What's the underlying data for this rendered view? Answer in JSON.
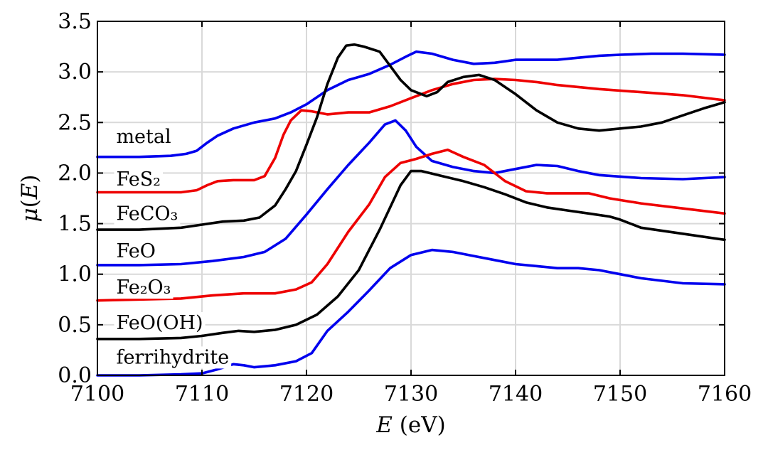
{
  "chart_data": {
    "type": "line",
    "xlabel": "E (eV)",
    "ylabel": "μ(E)",
    "xlim": [
      7100,
      7160
    ],
    "ylim": [
      0.0,
      3.5
    ],
    "xticks": [
      7100,
      7110,
      7120,
      7130,
      7140,
      7150,
      7160
    ],
    "yticks": [
      0.0,
      0.5,
      1.0,
      1.5,
      2.0,
      2.5,
      3.0,
      3.5
    ],
    "xtick_labels": [
      "7100",
      "7110",
      "7120",
      "7130",
      "7140",
      "7150",
      "7160"
    ],
    "ytick_labels": [
      "0.0",
      "0.5",
      "1.0",
      "1.5",
      "2.0",
      "2.5",
      "3.0",
      "3.5"
    ],
    "grid": true,
    "legend": "none",
    "labels": [
      {
        "text": "metal",
        "x": 7101.8,
        "y": 2.36
      },
      {
        "text": "FeS₂",
        "x": 7101.8,
        "y": 1.94
      },
      {
        "text": "FeCO₃",
        "x": 7101.8,
        "y": 1.6
      },
      {
        "text": "FeO",
        "x": 7101.8,
        "y": 1.23
      },
      {
        "text": "Fe₂O₃",
        "x": 7101.8,
        "y": 0.87
      },
      {
        "text": "FeO(OH)",
        "x": 7101.8,
        "y": 0.52
      },
      {
        "text": "ferrihydrite",
        "x": 7101.8,
        "y": 0.18
      }
    ],
    "series": [
      {
        "color": "#0000ee",
        "points": [
          [
            7100,
            2.16
          ],
          [
            7104,
            2.16
          ],
          [
            7107,
            2.17
          ],
          [
            7108.5,
            2.19
          ],
          [
            7109.5,
            2.22
          ],
          [
            7110.5,
            2.3
          ],
          [
            7111.5,
            2.37
          ],
          [
            7113,
            2.44
          ],
          [
            7115,
            2.5
          ],
          [
            7117,
            2.54
          ],
          [
            7118.5,
            2.6
          ],
          [
            7120,
            2.68
          ],
          [
            7122,
            2.82
          ],
          [
            7124,
            2.92
          ],
          [
            7126,
            2.98
          ],
          [
            7128,
            3.07
          ],
          [
            7129.5,
            3.15
          ],
          [
            7130.5,
            3.2
          ],
          [
            7132,
            3.18
          ],
          [
            7134,
            3.12
          ],
          [
            7136,
            3.08
          ],
          [
            7138,
            3.09
          ],
          [
            7140,
            3.12
          ],
          [
            7142,
            3.12
          ],
          [
            7144,
            3.12
          ],
          [
            7146,
            3.14
          ],
          [
            7148,
            3.16
          ],
          [
            7150,
            3.17
          ],
          [
            7153,
            3.18
          ],
          [
            7156,
            3.18
          ],
          [
            7160,
            3.17
          ]
        ]
      },
      {
        "color": "#ee0000",
        "points": [
          [
            7100,
            1.81
          ],
          [
            7104,
            1.81
          ],
          [
            7108,
            1.81
          ],
          [
            7109.5,
            1.83
          ],
          [
            7110.5,
            1.88
          ],
          [
            7111.5,
            1.92
          ],
          [
            7113,
            1.93
          ],
          [
            7115,
            1.93
          ],
          [
            7116,
            1.97
          ],
          [
            7117,
            2.15
          ],
          [
            7117.8,
            2.38
          ],
          [
            7118.5,
            2.52
          ],
          [
            7119.5,
            2.62
          ],
          [
            7120.5,
            2.61
          ],
          [
            7122,
            2.58
          ],
          [
            7124,
            2.6
          ],
          [
            7126,
            2.6
          ],
          [
            7128,
            2.66
          ],
          [
            7130,
            2.74
          ],
          [
            7132,
            2.82
          ],
          [
            7134,
            2.88
          ],
          [
            7136,
            2.92
          ],
          [
            7138,
            2.93
          ],
          [
            7140,
            2.92
          ],
          [
            7142,
            2.9
          ],
          [
            7144,
            2.87
          ],
          [
            7148,
            2.83
          ],
          [
            7152,
            2.8
          ],
          [
            7156,
            2.77
          ],
          [
            7160,
            2.72
          ]
        ]
      },
      {
        "color": "#000000",
        "points": [
          [
            7100,
            1.44
          ],
          [
            7104,
            1.44
          ],
          [
            7108,
            1.46
          ],
          [
            7110,
            1.49
          ],
          [
            7112,
            1.52
          ],
          [
            7114,
            1.53
          ],
          [
            7115.5,
            1.56
          ],
          [
            7117,
            1.68
          ],
          [
            7118,
            1.84
          ],
          [
            7119,
            2.02
          ],
          [
            7120,
            2.28
          ],
          [
            7121,
            2.55
          ],
          [
            7122,
            2.88
          ],
          [
            7123,
            3.14
          ],
          [
            7123.8,
            3.26
          ],
          [
            7124.6,
            3.27
          ],
          [
            7125.5,
            3.25
          ],
          [
            7127,
            3.2
          ],
          [
            7128,
            3.06
          ],
          [
            7129,
            2.92
          ],
          [
            7130,
            2.82
          ],
          [
            7131.5,
            2.76
          ],
          [
            7132.5,
            2.8
          ],
          [
            7133.5,
            2.9
          ],
          [
            7135,
            2.95
          ],
          [
            7136.5,
            2.97
          ],
          [
            7138,
            2.92
          ],
          [
            7140,
            2.78
          ],
          [
            7142,
            2.62
          ],
          [
            7144,
            2.5
          ],
          [
            7146,
            2.44
          ],
          [
            7148,
            2.42
          ],
          [
            7150,
            2.44
          ],
          [
            7152,
            2.46
          ],
          [
            7154,
            2.5
          ],
          [
            7156,
            2.57
          ],
          [
            7158,
            2.64
          ],
          [
            7160,
            2.7
          ]
        ]
      },
      {
        "color": "#0000ee",
        "points": [
          [
            7100,
            1.09
          ],
          [
            7104,
            1.09
          ],
          [
            7108,
            1.1
          ],
          [
            7111,
            1.13
          ],
          [
            7114,
            1.17
          ],
          [
            7116,
            1.22
          ],
          [
            7118,
            1.35
          ],
          [
            7120,
            1.59
          ],
          [
            7122,
            1.84
          ],
          [
            7124,
            2.08
          ],
          [
            7126,
            2.3
          ],
          [
            7127.5,
            2.48
          ],
          [
            7128.5,
            2.52
          ],
          [
            7129.5,
            2.42
          ],
          [
            7130.5,
            2.26
          ],
          [
            7132,
            2.12
          ],
          [
            7134,
            2.06
          ],
          [
            7136,
            2.02
          ],
          [
            7138,
            2.0
          ],
          [
            7140,
            2.04
          ],
          [
            7142,
            2.08
          ],
          [
            7144,
            2.07
          ],
          [
            7146,
            2.02
          ],
          [
            7148,
            1.98
          ],
          [
            7152,
            1.95
          ],
          [
            7156,
            1.94
          ],
          [
            7160,
            1.96
          ]
        ]
      },
      {
        "color": "#ee0000",
        "points": [
          [
            7100,
            0.74
          ],
          [
            7104,
            0.75
          ],
          [
            7108,
            0.76
          ],
          [
            7111,
            0.79
          ],
          [
            7114,
            0.81
          ],
          [
            7117,
            0.81
          ],
          [
            7119,
            0.85
          ],
          [
            7120.5,
            0.92
          ],
          [
            7122,
            1.1
          ],
          [
            7124,
            1.42
          ],
          [
            7126,
            1.69
          ],
          [
            7127.5,
            1.96
          ],
          [
            7129,
            2.1
          ],
          [
            7130.5,
            2.14
          ],
          [
            7132,
            2.19
          ],
          [
            7133.5,
            2.23
          ],
          [
            7135,
            2.16
          ],
          [
            7137,
            2.08
          ],
          [
            7139,
            1.92
          ],
          [
            7141,
            1.82
          ],
          [
            7143,
            1.8
          ],
          [
            7145,
            1.8
          ],
          [
            7147,
            1.8
          ],
          [
            7149,
            1.75
          ],
          [
            7152,
            1.7
          ],
          [
            7156,
            1.65
          ],
          [
            7160,
            1.6
          ]
        ]
      },
      {
        "color": "#000000",
        "points": [
          [
            7100,
            0.36
          ],
          [
            7104,
            0.36
          ],
          [
            7108,
            0.37
          ],
          [
            7110,
            0.39
          ],
          [
            7112,
            0.42
          ],
          [
            7113.5,
            0.44
          ],
          [
            7115,
            0.43
          ],
          [
            7117,
            0.45
          ],
          [
            7119,
            0.5
          ],
          [
            7121,
            0.6
          ],
          [
            7123,
            0.78
          ],
          [
            7125,
            1.04
          ],
          [
            7127,
            1.44
          ],
          [
            7129,
            1.88
          ],
          [
            7130,
            2.02
          ],
          [
            7131,
            2.02
          ],
          [
            7133,
            1.97
          ],
          [
            7135,
            1.92
          ],
          [
            7137,
            1.86
          ],
          [
            7139,
            1.79
          ],
          [
            7141,
            1.71
          ],
          [
            7143,
            1.66
          ],
          [
            7145,
            1.63
          ],
          [
            7147,
            1.6
          ],
          [
            7149,
            1.57
          ],
          [
            7150,
            1.54
          ],
          [
            7152,
            1.46
          ],
          [
            7156,
            1.4
          ],
          [
            7160,
            1.34
          ]
        ]
      },
      {
        "color": "#0000ee",
        "points": [
          [
            7100,
            0.0
          ],
          [
            7104,
            0.0
          ],
          [
            7108,
            0.01
          ],
          [
            7110,
            0.02
          ],
          [
            7111.5,
            0.06
          ],
          [
            7113,
            0.11
          ],
          [
            7114,
            0.1
          ],
          [
            7115,
            0.08
          ],
          [
            7117,
            0.1
          ],
          [
            7119,
            0.14
          ],
          [
            7120.5,
            0.22
          ],
          [
            7122,
            0.44
          ],
          [
            7124,
            0.63
          ],
          [
            7126,
            0.84
          ],
          [
            7128,
            1.06
          ],
          [
            7130,
            1.19
          ],
          [
            7132,
            1.24
          ],
          [
            7134,
            1.22
          ],
          [
            7136,
            1.18
          ],
          [
            7138,
            1.14
          ],
          [
            7140,
            1.1
          ],
          [
            7142,
            1.08
          ],
          [
            7144,
            1.06
          ],
          [
            7146,
            1.06
          ],
          [
            7148,
            1.04
          ],
          [
            7150,
            1.0
          ],
          [
            7152,
            0.96
          ],
          [
            7156,
            0.91
          ],
          [
            7160,
            0.9
          ]
        ]
      }
    ]
  }
}
